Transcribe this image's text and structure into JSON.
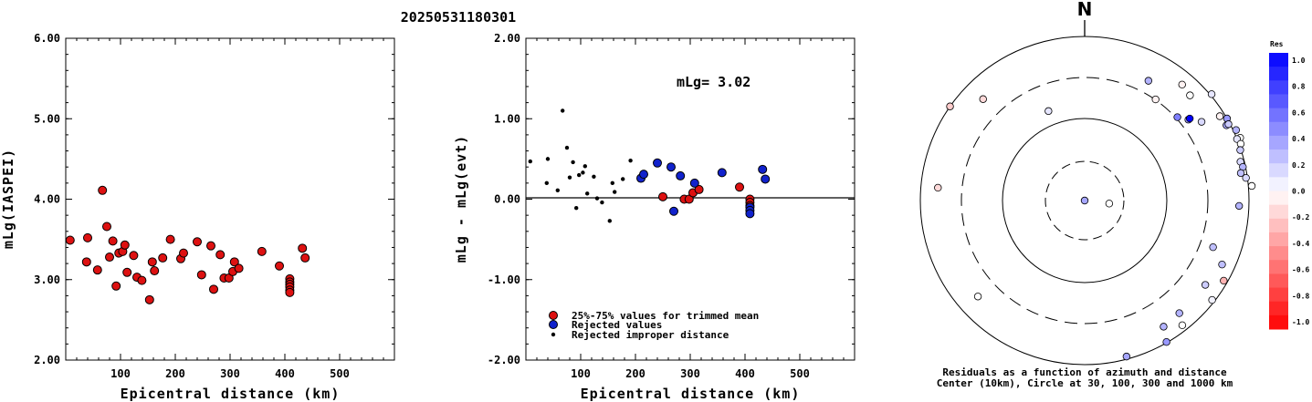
{
  "title": "20250531180301",
  "chart_data": [
    {
      "type": "scatter",
      "ylabel": "mLg(IASPEI)",
      "xlabel": "Epicentral distance (km)",
      "xlim": [
        0,
        600
      ],
      "ylim": [
        2.0,
        6.0
      ],
      "xticks": [
        "100",
        "200",
        "300",
        "400",
        "500"
      ],
      "yticks": [
        "2.00",
        "3.00",
        "4.00",
        "5.00",
        "6.00"
      ],
      "points": [
        [
          8,
          3.49
        ],
        [
          38,
          3.22
        ],
        [
          40,
          3.52
        ],
        [
          58,
          3.12
        ],
        [
          67,
          4.11
        ],
        [
          75,
          3.66
        ],
        [
          80,
          3.28
        ],
        [
          86,
          3.48
        ],
        [
          92,
          2.92
        ],
        [
          97,
          3.33
        ],
        [
          104,
          3.35
        ],
        [
          108,
          3.43
        ],
        [
          112,
          3.09
        ],
        [
          124,
          3.3
        ],
        [
          130,
          3.03
        ],
        [
          139,
          2.99
        ],
        [
          153,
          2.75
        ],
        [
          158,
          3.22
        ],
        [
          162,
          3.11
        ],
        [
          177,
          3.27
        ],
        [
          191,
          3.5
        ],
        [
          210,
          3.26
        ],
        [
          215,
          3.33
        ],
        [
          240,
          3.47
        ],
        [
          248,
          3.06
        ],
        [
          265,
          3.42
        ],
        [
          270,
          2.88
        ],
        [
          282,
          3.31
        ],
        [
          289,
          3.02
        ],
        [
          298,
          3.02
        ],
        [
          305,
          3.1
        ],
        [
          308,
          3.22
        ],
        [
          316,
          3.14
        ],
        [
          358,
          3.35
        ],
        [
          390,
          3.17
        ],
        [
          409,
          3.01
        ],
        [
          409,
          2.97
        ],
        [
          409,
          2.94
        ],
        [
          409,
          2.91
        ],
        [
          409,
          2.87
        ],
        [
          409,
          2.84
        ],
        [
          432,
          3.39
        ],
        [
          437,
          3.27
        ]
      ]
    },
    {
      "type": "scatter",
      "ylabel": "mLg - mLg(evt)",
      "xlabel": "Epicentral distance (km)",
      "xlim": [
        0,
        600
      ],
      "ylim": [
        -2.0,
        2.0
      ],
      "xticks": [
        "100",
        "200",
        "300",
        "400",
        "500"
      ],
      "yticks": [
        "-2.00",
        "-1.00",
        "0.00",
        "1.00",
        "2.00"
      ],
      "annotation": "mLg= 3.02",
      "legend": [
        "25%-75% values for trimmed mean",
        "Rejected values",
        "Rejected improper distance"
      ],
      "series": [
        {
          "name": "25%-75% values for trimmed mean",
          "color": "#dd1111",
          "points": [
            [
              250,
              0.03
            ],
            [
              289,
              0.0
            ],
            [
              298,
              0.0
            ],
            [
              305,
              0.08
            ],
            [
              316,
              0.12
            ],
            [
              390,
              0.15
            ],
            [
              409,
              0.0
            ],
            [
              409,
              -0.04
            ],
            [
              409,
              -0.08
            ]
          ]
        },
        {
          "name": "Rejected values",
          "color": "#1122cc",
          "points": [
            [
              210,
              0.26
            ],
            [
              215,
              0.31
            ],
            [
              240,
              0.45
            ],
            [
              265,
              0.4
            ],
            [
              270,
              -0.15
            ],
            [
              282,
              0.29
            ],
            [
              308,
              0.2
            ],
            [
              358,
              0.33
            ],
            [
              409,
              -0.1
            ],
            [
              409,
              -0.14
            ],
            [
              409,
              -0.18
            ],
            [
              432,
              0.37
            ],
            [
              437,
              0.25
            ]
          ]
        },
        {
          "name": "Rejected improper distance",
          "color": "#000000",
          "points": [
            [
              8,
              0.47
            ],
            [
              38,
              0.2
            ],
            [
              40,
              0.5
            ],
            [
              58,
              0.11
            ],
            [
              67,
              1.1
            ],
            [
              75,
              0.64
            ],
            [
              80,
              0.27
            ],
            [
              86,
              0.46
            ],
            [
              92,
              -0.11
            ],
            [
              97,
              0.3
            ],
            [
              104,
              0.33
            ],
            [
              108,
              0.41
            ],
            [
              112,
              0.07
            ],
            [
              124,
              0.28
            ],
            [
              130,
              0.01
            ],
            [
              139,
              -0.04
            ],
            [
              153,
              -0.27
            ],
            [
              158,
              0.2
            ],
            [
              162,
              0.09
            ],
            [
              177,
              0.25
            ],
            [
              191,
              0.48
            ]
          ]
        }
      ]
    },
    {
      "type": "polar-scatter",
      "north_label": "N",
      "caption_line1": "Residuals as a function of azimuth and distance",
      "caption_line2": "Center (10km), Circle at 30, 100, 300 and 1000 km",
      "colorbar": {
        "title": "Res",
        "labels": [
          "1.0",
          "0.8",
          "0.6",
          "0.4",
          "0.2",
          "0.0",
          "-0.2",
          "-0.4",
          "-0.6",
          "-0.8",
          "-1.0"
        ]
      },
      "points": [
        [
          -45,
          560,
          -0.15
        ],
        [
          -22,
          150,
          0.1
        ],
        [
          35,
          320,
          -0.05
        ],
        [
          28,
          450,
          0.3
        ],
        [
          40,
          700,
          -0.05
        ],
        [
          45,
          650,
          0.0
        ],
        [
          48,
          330,
          0.5
        ],
        [
          52,
          400,
          0.35
        ],
        [
          52,
          420,
          1.0
        ],
        [
          50,
          1040,
          0.1
        ],
        [
          56,
          520,
          0.15
        ],
        [
          58,
          870,
          -0.05
        ],
        [
          60,
          1000,
          0.4
        ],
        [
          62,
          900,
          0.35
        ],
        [
          62,
          960,
          0.2
        ],
        [
          65,
          1080,
          0.3
        ],
        [
          68,
          1100,
          0.0
        ],
        [
          68,
          1000,
          0.1
        ],
        [
          70,
          1050,
          0.0
        ],
        [
          72,
          980,
          0.2
        ],
        [
          76,
          900,
          0.15
        ],
        [
          78,
          930,
          0.3
        ],
        [
          80,
          850,
          0.25
        ],
        [
          82,
          960,
          0.15
        ],
        [
          85,
          1100,
          0.0
        ],
        [
          92,
          760,
          0.3
        ],
        [
          110,
          460,
          0.25
        ],
        [
          115,
          700,
          0.25
        ],
        [
          120,
          900,
          -0.3
        ],
        [
          125,
          620,
          0.2
        ],
        [
          128,
          930,
          0.05
        ],
        [
          140,
          620,
          0.3
        ],
        [
          142,
          850,
          0.0
        ],
        [
          150,
          980,
          0.4
        ],
        [
          148,
          650,
          0.3
        ],
        [
          165,
          930,
          0.35
        ],
        [
          228,
          560,
          0.0
        ],
        [
          275,
          620,
          -0.15
        ],
        [
          -20,
          10,
          0.35
        ],
        [
          97,
          20,
          0.0
        ],
        [
          305,
          1000,
          -0.2
        ]
      ]
    }
  ]
}
